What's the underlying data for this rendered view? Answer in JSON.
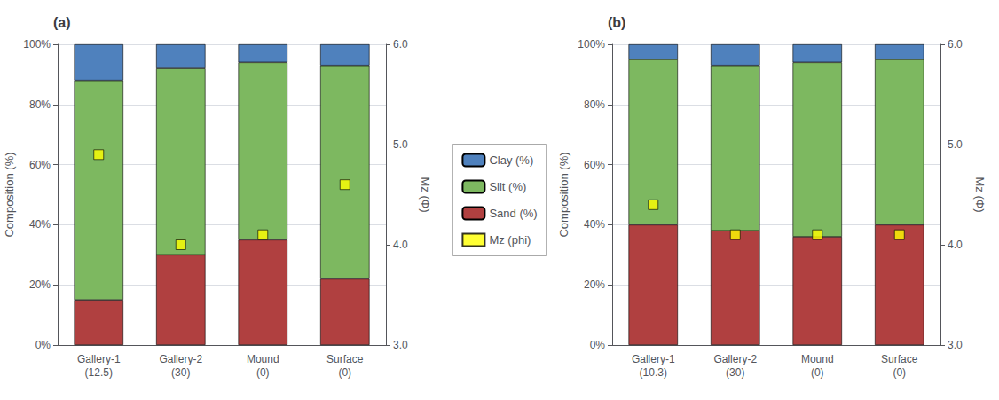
{
  "chart_data": [
    {
      "type": "bar",
      "title": "(a)",
      "stacked": true,
      "grid": true,
      "legend": "center",
      "categories": [
        "Gallery-1\n(12.5)",
        "Gallery-2\n(30)",
        "Mound\n(0)",
        "Surface\n(0)"
      ],
      "ylabel": "Composition (%)",
      "y2label": "Mz (Φ)",
      "ylim": [
        0,
        100
      ],
      "yticks": [
        {
          "value": 0,
          "label": "0%"
        },
        {
          "value": 20,
          "label": "20%"
        },
        {
          "value": 40,
          "label": "40%"
        },
        {
          "value": 60,
          "label": "60%"
        },
        {
          "value": 80,
          "label": "80%"
        },
        {
          "value": 100,
          "label": "100%"
        }
      ],
      "y2lim": [
        3.0,
        6.0
      ],
      "y2ticks": [
        {
          "value": 3.0,
          "label": "3.0"
        },
        {
          "value": 4.0,
          "label": "4.0"
        },
        {
          "value": 5.0,
          "label": "5.0"
        },
        {
          "value": 6.0,
          "label": "6.0"
        }
      ],
      "series": [
        {
          "name": "Sand (%)",
          "color": "#b04040",
          "values": [
            15,
            30,
            35,
            22
          ]
        },
        {
          "name": "Silt (%)",
          "color": "#7db860",
          "values": [
            73,
            62,
            59,
            71
          ]
        },
        {
          "name": "Clay (%)",
          "color": "#4f81bd",
          "values": [
            12,
            8,
            6,
            7
          ]
        },
        {
          "name": "Mz (phi)",
          "type": "scatter",
          "marker": "square",
          "axis": "y2",
          "color": "#ffff00",
          "values": [
            4.9,
            4.0,
            4.1,
            4.6
          ]
        }
      ]
    },
    {
      "type": "bar",
      "title": "(b)",
      "stacked": true,
      "grid": true,
      "legend": "center",
      "categories": [
        "Gallery-1\n(10.3)",
        "Gallery-2\n(30)",
        "Mound\n(0)",
        "Surface\n(0)"
      ],
      "ylabel": "Composition (%)",
      "y2label": "Mz (Φ)",
      "ylim": [
        0,
        100
      ],
      "yticks": [
        {
          "value": 0,
          "label": "0%"
        },
        {
          "value": 20,
          "label": "20%"
        },
        {
          "value": 40,
          "label": "40%"
        },
        {
          "value": 60,
          "label": "60%"
        },
        {
          "value": 80,
          "label": "80%"
        },
        {
          "value": 100,
          "label": "100%"
        }
      ],
      "y2lim": [
        3.0,
        6.0
      ],
      "y2ticks": [
        {
          "value": 3.0,
          "label": "3.0"
        },
        {
          "value": 4.0,
          "label": "4.0"
        },
        {
          "value": 5.0,
          "label": "5.0"
        },
        {
          "value": 6.0,
          "label": "6.0"
        }
      ],
      "series": [
        {
          "name": "Sand (%)",
          "color": "#b04040",
          "values": [
            40,
            38,
            36,
            40
          ]
        },
        {
          "name": "Silt (%)",
          "color": "#7db860",
          "values": [
            55,
            55,
            58,
            55
          ]
        },
        {
          "name": "Clay (%)",
          "color": "#4f81bd",
          "values": [
            5,
            7,
            6,
            5
          ]
        },
        {
          "name": "Mz (phi)",
          "type": "scatter",
          "marker": "square",
          "axis": "y2",
          "color": "#ffff00",
          "values": [
            4.4,
            4.1,
            4.1,
            4.1
          ]
        }
      ]
    }
  ]
}
